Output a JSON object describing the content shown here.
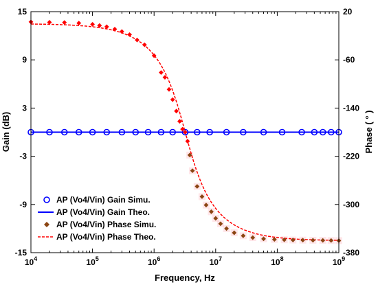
{
  "chart_data": {
    "type": "line",
    "xlabel": "Frequency, Hz",
    "ylabel_left": "Gain (dB)",
    "ylabel_right": "Phase ( ° )",
    "x_scale": "log",
    "xlim": [
      10000,
      1000000000
    ],
    "ylim_left": [
      -15,
      15
    ],
    "ylim_right": [
      -380,
      20
    ],
    "x_ticks": [
      {
        "value": 10000,
        "base": "10",
        "exp": "4"
      },
      {
        "value": 100000,
        "base": "10",
        "exp": "5"
      },
      {
        "value": 1000000,
        "base": "10",
        "exp": "6"
      },
      {
        "value": 10000000,
        "base": "10",
        "exp": "7"
      },
      {
        "value": 100000000,
        "base": "10",
        "exp": "8"
      },
      {
        "value": 1000000000,
        "base": "10",
        "exp": "9"
      }
    ],
    "y_ticks_left": [
      {
        "value": 15,
        "label": "15"
      },
      {
        "value": 9,
        "label": "9"
      },
      {
        "value": 3,
        "label": "3"
      },
      {
        "value": -3,
        "label": "-3"
      },
      {
        "value": -9,
        "label": "-9"
      },
      {
        "value": -15,
        "label": "-15"
      }
    ],
    "y_ticks_right": [
      {
        "value": 20,
        "label": "20"
      },
      {
        "value": -60,
        "label": "-60"
      },
      {
        "value": -140,
        "label": "-140"
      },
      {
        "value": -220,
        "label": "-220"
      },
      {
        "value": -300,
        "label": "-300"
      },
      {
        "value": -380,
        "label": "-380"
      }
    ],
    "grid": false,
    "legend_position": "bottom-left",
    "phase_theory_f0": 3200000,
    "series": [
      {
        "name": "AP (Vo4/Vin) Gain Simu.",
        "axis": "left",
        "style": "circle-markers",
        "color": "#0000ff",
        "x": [
          10000,
          20000,
          35000,
          60000,
          100000,
          170000,
          300000,
          500000,
          800000,
          1300000,
          2000000,
          3200000,
          5000000,
          8000000,
          15000000,
          28000000,
          60000000,
          120000000,
          250000000,
          400000000,
          550000000,
          750000000,
          1000000000
        ],
        "y": [
          0,
          0,
          0,
          0,
          0,
          0,
          0,
          0,
          0,
          0,
          0,
          0,
          0,
          0,
          0,
          0,
          0,
          0,
          0,
          0,
          0,
          0,
          0
        ]
      },
      {
        "name": "AP (Vo4/Vin) Gain Theo.",
        "axis": "left",
        "style": "solid-line",
        "color": "#0000ff",
        "x": [
          10000,
          1000000000
        ],
        "y": [
          0,
          0
        ]
      },
      {
        "name": "AP (Vo4/Vin) Phase Simu.",
        "axis": "right",
        "style": "diamond-markers",
        "x": [
          10000,
          20000,
          35000,
          60000,
          100000,
          130000,
          170000,
          230000,
          300000,
          400000,
          530000,
          700000,
          1000000,
          1300000,
          1500000,
          1750000,
          2000000,
          2300000,
          2600000,
          2900000,
          3200000,
          3500000,
          3800000,
          4200000,
          5000000,
          6000000,
          7000000,
          8500000,
          10000000,
          12000000,
          15000000,
          20000000,
          28000000,
          40000000,
          60000000,
          90000000,
          130000000,
          180000000,
          260000000,
          380000000,
          550000000,
          750000000,
          1000000000
        ],
        "y": [
          3,
          2.4,
          2,
          1,
          -1,
          -3,
          -5,
          -9,
          -13,
          -18,
          -27,
          -35,
          -53,
          -81,
          -89,
          -109,
          -126,
          -145,
          -162,
          -175,
          -180,
          -195,
          -218,
          -244,
          -270,
          -287,
          -301,
          -312,
          -323,
          -332,
          -340,
          -347,
          -352,
          -355,
          -357,
          -358,
          -358.6,
          -359,
          -359.2,
          -359.4,
          -359.6,
          -359.8,
          -360
        ]
      },
      {
        "name": "AP (Vo4/Vin) Phase Theo.",
        "axis": "right",
        "style": "dashed-line",
        "x": [
          10000,
          1000000000
        ],
        "y": [
          0,
          -360
        ]
      }
    ]
  },
  "colors": {
    "gain": "#0000ff",
    "phase_theory_line": "#ff0000",
    "phase_sim_marker": "#8b4513",
    "phase_sim_marker_upper": "#ff0000",
    "phase_shadow": "#ffb6c1"
  }
}
